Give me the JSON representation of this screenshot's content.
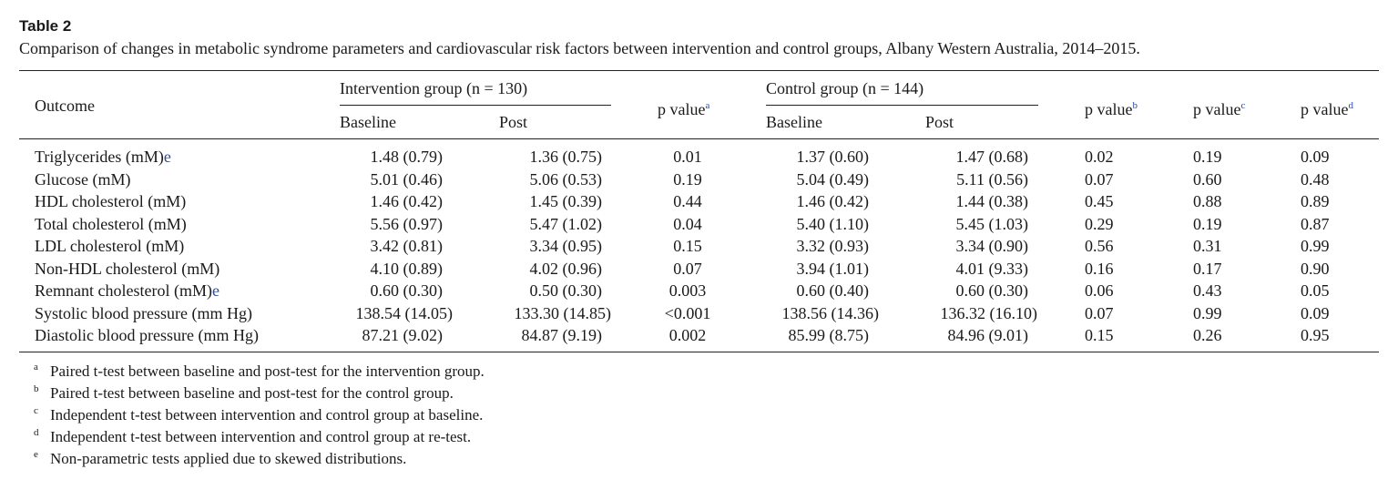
{
  "table": {
    "label": "Table 2",
    "caption": "Comparison of changes in metabolic syndrome parameters and cardiovascular risk factors between intervention and control groups, Albany Western Australia, 2014–2015.",
    "headers": {
      "outcome": "Outcome",
      "intervention_group": "Intervention group (n = 130)",
      "control_group": "Control group (n = 144)",
      "baseline": "Baseline",
      "post": "Post",
      "p_value": "p value",
      "sup_a": "a",
      "sup_b": "b",
      "sup_c": "c",
      "sup_d": "d"
    },
    "rows": [
      {
        "outcome": "Triglycerides (mM)",
        "mark": "e",
        "int_baseline": "1.48 (0.79)",
        "int_post": "1.36 (0.75)",
        "p_a": "0.01",
        "ctl_baseline": "1.37 (0.60)",
        "ctl_post": "1.47 (0.68)",
        "p_b": "0.02",
        "p_c": "0.19",
        "p_d": "0.09"
      },
      {
        "outcome": "Glucose (mM)",
        "mark": "",
        "int_baseline": "5.01 (0.46)",
        "int_post": "5.06 (0.53)",
        "p_a": "0.19",
        "ctl_baseline": "5.04 (0.49)",
        "ctl_post": "5.11 (0.56)",
        "p_b": "0.07",
        "p_c": "0.60",
        "p_d": "0.48"
      },
      {
        "outcome": "HDL cholesterol (mM)",
        "mark": "",
        "int_baseline": "1.46 (0.42)",
        "int_post": "1.45 (0.39)",
        "p_a": "0.44",
        "ctl_baseline": "1.46 (0.42)",
        "ctl_post": "1.44 (0.38)",
        "p_b": "0.45",
        "p_c": "0.88",
        "p_d": "0.89"
      },
      {
        "outcome": "Total cholesterol (mM)",
        "mark": "",
        "int_baseline": "5.56 (0.97)",
        "int_post": "5.47 (1.02)",
        "p_a": "0.04",
        "ctl_baseline": "5.40 (1.10)",
        "ctl_post": "5.45 (1.03)",
        "p_b": "0.29",
        "p_c": "0.19",
        "p_d": "0.87"
      },
      {
        "outcome": "LDL cholesterol (mM)",
        "mark": "",
        "int_baseline": "3.42 (0.81)",
        "int_post": "3.34 (0.95)",
        "p_a": "0.15",
        "ctl_baseline": "3.32 (0.93)",
        "ctl_post": "3.34 (0.90)",
        "p_b": "0.56",
        "p_c": "0.31",
        "p_d": "0.99"
      },
      {
        "outcome": "Non-HDL cholesterol (mM)",
        "mark": "",
        "int_baseline": "4.10 (0.89)",
        "int_post": "4.02 (0.96)",
        "p_a": "0.07",
        "ctl_baseline": "3.94 (1.01)",
        "ctl_post": "4.01 (9.33)",
        "p_b": "0.16",
        "p_c": "0.17",
        "p_d": "0.90"
      },
      {
        "outcome": "Remnant cholesterol (mM)",
        "mark": "e",
        "int_baseline": "0.60 (0.30)",
        "int_post": "0.50 (0.30)",
        "p_a": "0.003",
        "ctl_baseline": "0.60 (0.40)",
        "ctl_post": "0.60 (0.30)",
        "p_b": "0.06",
        "p_c": "0.43",
        "p_d": "0.05"
      },
      {
        "outcome": "Systolic blood pressure (mm Hg)",
        "mark": "",
        "int_baseline": "138.54 (14.05)",
        "int_post": "133.30 (14.85)",
        "p_a": "<0.001",
        "ctl_baseline": "138.56 (14.36)",
        "ctl_post": "136.32 (16.10)",
        "p_b": "0.07",
        "p_c": "0.99",
        "p_d": "0.09"
      },
      {
        "outcome": "Diastolic blood pressure (mm Hg)",
        "mark": "",
        "int_baseline": "87.21 (9.02)",
        "int_post": "84.87 (9.19)",
        "p_a": "0.002",
        "ctl_baseline": "85.99 (8.75)",
        "ctl_post": "84.96 (9.01)",
        "p_b": "0.15",
        "p_c": "0.26",
        "p_d": "0.95"
      }
    ],
    "footnotes": [
      {
        "mark": "a",
        "text": "Paired t-test between baseline and post-test for the intervention group."
      },
      {
        "mark": "b",
        "text": "Paired t-test between baseline and post-test for the control group."
      },
      {
        "mark": "c",
        "text": "Independent t-test between intervention and control group at baseline."
      },
      {
        "mark": "d",
        "text": "Independent t-test between intervention and control group at re-test."
      },
      {
        "mark": "e",
        "text": "Non-parametric tests applied due to skewed distributions."
      }
    ]
  }
}
